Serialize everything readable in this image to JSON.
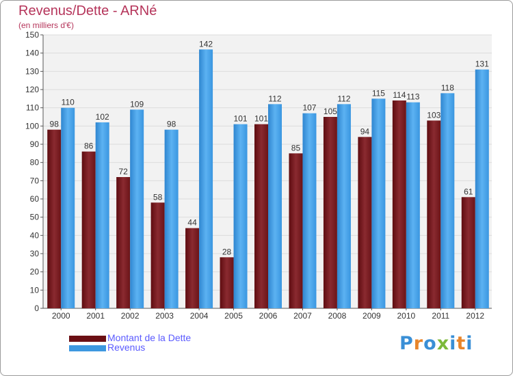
{
  "title": "Revenus/Dette - ARNé",
  "subtitle": "(en milliers d'€)",
  "colors": {
    "debt": "#7a1a20",
    "debt_light": "#8e3036",
    "revenue": "#3d98e0",
    "revenue_light": "#5ab0f0",
    "background": "#ffffff",
    "plot_bg": "#f2f2f2",
    "grid": "#dcdcdc",
    "title": "#b5345a",
    "legend_text": "#5a5aff"
  },
  "legend": [
    {
      "label": "Montant de la Dette",
      "color": "#6b0f14"
    },
    {
      "label": "Revenus",
      "color": "#3d98e0"
    }
  ],
  "logo": {
    "letters": [
      "P",
      "r",
      "o",
      "x",
      "i",
      "t",
      "i"
    ],
    "colors": [
      "#3a8fd6",
      "#e8852b",
      "#3a8fd6",
      "#7cb93a",
      "#3a8fd6",
      "#e8852b",
      "#3a8fd6"
    ]
  },
  "chart_data": {
    "type": "bar",
    "categories": [
      "2000",
      "2001",
      "2002",
      "2003",
      "2004",
      "2005",
      "2006",
      "2007",
      "2008",
      "2009",
      "2010",
      "2011",
      "2012"
    ],
    "series": [
      {
        "name": "Montant de la Dette",
        "values": [
          98,
          86,
          72,
          58,
          44,
          28,
          101,
          85,
          105,
          94,
          114,
          103,
          61
        ]
      },
      {
        "name": "Revenus",
        "values": [
          110,
          102,
          109,
          98,
          142,
          101,
          112,
          107,
          112,
          115,
          113,
          118,
          131
        ]
      }
    ],
    "yticks": [
      0,
      10,
      20,
      30,
      40,
      50,
      60,
      70,
      80,
      90,
      100,
      110,
      120,
      130,
      140,
      150
    ],
    "ylim": [
      0,
      150
    ],
    "grid": true,
    "legend_position": "bottom-left"
  }
}
